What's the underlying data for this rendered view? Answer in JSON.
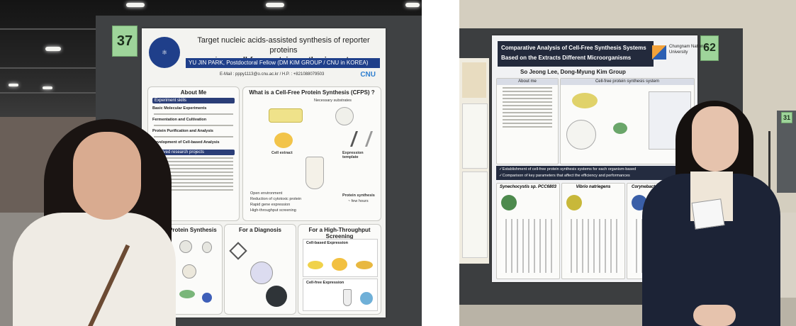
{
  "photo_left": {
    "booth_number": "37",
    "poster": {
      "title_line1": "Target nucleic acids-assisted synthesis of reporter proteins",
      "title_line2_prefix": "using a ",
      "title_line2_bold": "cell-free protein synthesis system",
      "author": "YU JIN PARK, Postdoctoral Fellow (DM KIM GROUP / CNU in KOREA)",
      "email": "E-Mail : pppy1113@o.cnu.ac.kr / H.P. : +821088079503",
      "logo_text": "CNU",
      "sections": {
        "about_me": "About Me",
        "experiment_skills": "Experiment skills",
        "involved_projects": "Involved research projects",
        "what_is_cfps": "What is a Cell-Free Protein Synthesis (CFPS) ?",
        "necessary_substrates": "Necessary substrates",
        "cell_extract": "Cell extract",
        "expression_template": "Expression template",
        "protein_synthesis": "Protein synthesis",
        "few_hours": "~ few hours",
        "for_protein_synthesis": "For a Protein Synthesis",
        "for_diagnosis": "For a Diagnosis",
        "for_hts": "For a High-Throughput Screening",
        "cell_based": "Cell-based Expression",
        "cell_free": "Cell-free Expression"
      },
      "skills": [
        "Basic Molecular Experiments",
        "Fermentation and Cultivation",
        "Protein Purification and Analysis",
        "Development of Cell-based Analysis"
      ],
      "features": [
        "Open environment",
        "Reduction of cytotoxic protein",
        "Rapid gene expression",
        "High-throughput screening"
      ]
    }
  },
  "photo_right": {
    "booth_number": "62",
    "side_booth_number": "31",
    "poster": {
      "title_line1": "Comparative Analysis of Cell-Free Synthesis Systems",
      "title_line2": "Based on the Extracts Different Microorganisms",
      "authors": "So Jeong Lee, Dong-Myung Kim Group",
      "university": "Chungnam National University",
      "about_me": "About me",
      "cfps_heading": "Cell-free protein synthesis system",
      "band_line1": "✓Establishment of cell-free protein synthesis systems for each organism-based",
      "band_line2": "✓Comparison of key parameters that affect the efficiency and performances",
      "organisms": [
        "Synechocystis sp. PCC6803",
        "Vibrio natriegens",
        "Corynebacteri"
      ]
    }
  }
}
